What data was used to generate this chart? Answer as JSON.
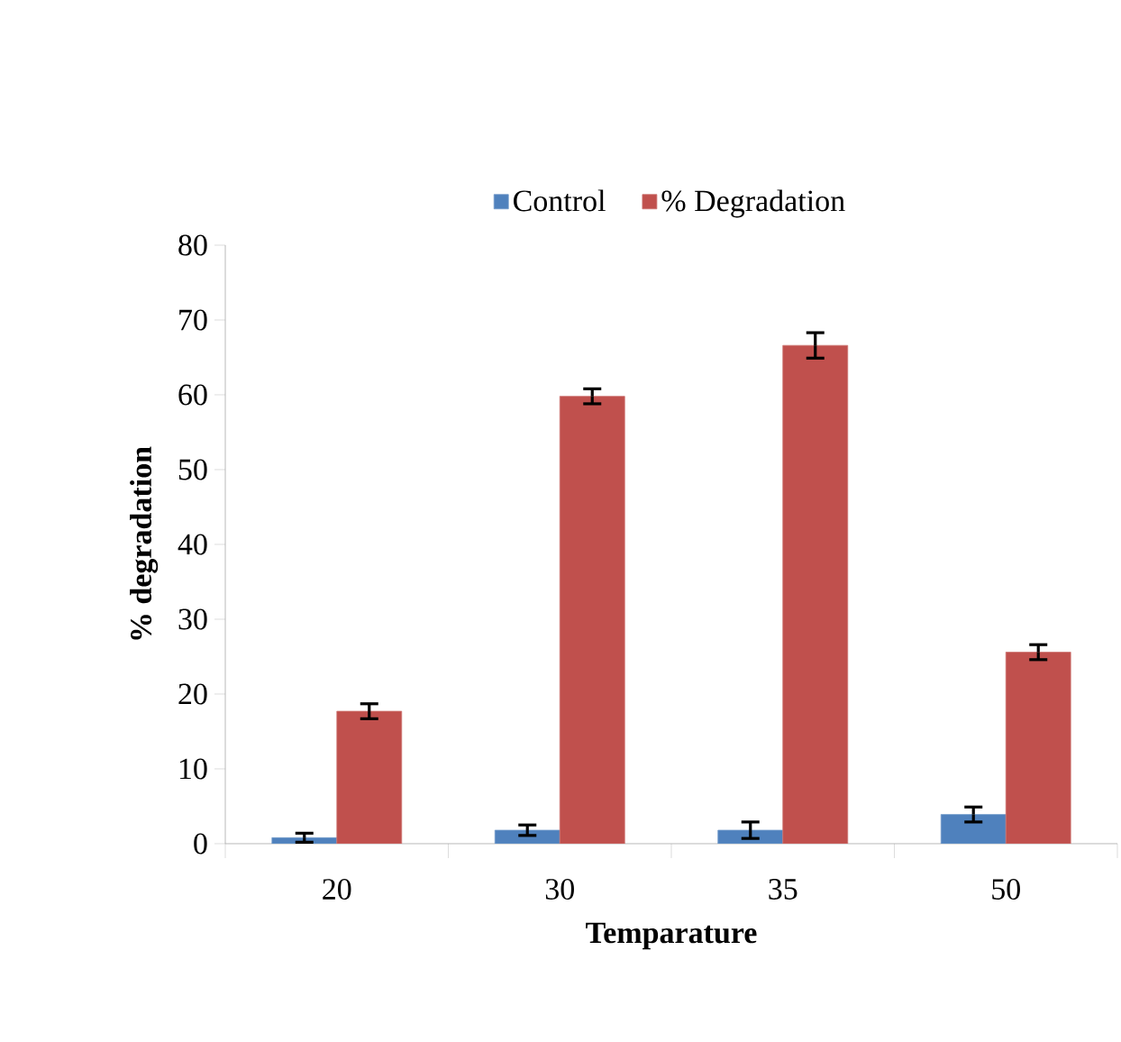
{
  "chart_data": {
    "type": "bar",
    "xlabel": "Temparature",
    "ylabel": "% degradation",
    "categories": [
      "20",
      "30",
      "35",
      "50"
    ],
    "series": [
      {
        "name": "Control",
        "color": "#4f81bd",
        "values": [
          0.8,
          1.8,
          1.8,
          3.9
        ],
        "errors": [
          0.6,
          0.7,
          1.1,
          1.0
        ]
      },
      {
        "name": "% Degradation",
        "color": "#c0504d",
        "values": [
          17.7,
          59.8,
          66.6,
          25.6
        ],
        "errors": [
          1.0,
          1.0,
          1.7,
          1.0
        ]
      }
    ],
    "ylim": [
      0,
      80
    ],
    "yticks": [
      0,
      10,
      20,
      30,
      40,
      50,
      60,
      70,
      80
    ],
    "legend": "top",
    "grid": false
  }
}
